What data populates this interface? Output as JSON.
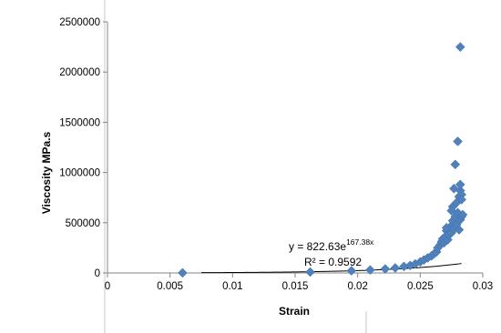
{
  "chart_data": {
    "type": "scatter",
    "xlabel": "Strain",
    "ylabel": "Viscosity MPa.s",
    "xlim": [
      0,
      0.03
    ],
    "ylim": [
      0,
      2500000
    ],
    "x_ticks": [
      0,
      0.005,
      0.01,
      0.015,
      0.02,
      0.025,
      0.03
    ],
    "x_tick_labels": [
      "0",
      "0.005",
      "0.01",
      "0.015",
      "0.02",
      "0.025",
      "0.03"
    ],
    "y_ticks": [
      0,
      500000,
      1000000,
      1500000,
      2000000,
      2500000
    ],
    "y_tick_labels": [
      "0",
      "500000",
      "1000000",
      "1500000",
      "2000000",
      "2500000"
    ],
    "grid": false,
    "marker_color": "#4F81BD",
    "trendline": {
      "type": "exponential",
      "a": 822.63,
      "b": 167.38,
      "x_range": [
        0.0075,
        0.0283
      ],
      "color": "#000000"
    },
    "annotations": {
      "equation_prefix": "y = 822.63e",
      "equation_exponent": "167.38x",
      "r_squared": "R² = 0.9592"
    },
    "points": [
      [
        0.006,
        1000
      ],
      [
        0.0162,
        9000
      ],
      [
        0.0195,
        22000
      ],
      [
        0.021,
        30000
      ],
      [
        0.0222,
        40000
      ],
      [
        0.023,
        50000
      ],
      [
        0.0237,
        65000
      ],
      [
        0.0242,
        75000
      ],
      [
        0.0246,
        90000
      ],
      [
        0.025,
        110000
      ],
      [
        0.0253,
        130000
      ],
      [
        0.0256,
        150000
      ],
      [
        0.0259,
        170000
      ],
      [
        0.0261,
        190000
      ],
      [
        0.0263,
        210000
      ],
      [
        0.0264,
        250000
      ],
      [
        0.0266,
        280000
      ],
      [
        0.0267,
        310000
      ],
      [
        0.0268,
        340000
      ],
      [
        0.0269,
        300000
      ],
      [
        0.027,
        360000
      ],
      [
        0.0271,
        420000
      ],
      [
        0.0272,
        330000
      ],
      [
        0.0273,
        380000
      ],
      [
        0.0274,
        460000
      ],
      [
        0.0275,
        400000
      ],
      [
        0.0276,
        520000
      ],
      [
        0.0276,
        660000
      ],
      [
        0.0277,
        840000
      ],
      [
        0.0277,
        440000
      ],
      [
        0.0278,
        1080000
      ],
      [
        0.0278,
        560000
      ],
      [
        0.0279,
        480000
      ],
      [
        0.028,
        1310000
      ],
      [
        0.028,
        600000
      ],
      [
        0.0281,
        760000
      ],
      [
        0.0281,
        430000
      ],
      [
        0.0282,
        820000
      ],
      [
        0.0282,
        530000
      ],
      [
        0.0282,
        880000
      ],
      [
        0.0283,
        780000
      ],
      [
        0.0283,
        560000
      ],
      [
        0.0284,
        580000
      ],
      [
        0.0282,
        2250000
      ],
      [
        0.0279,
        700000
      ],
      [
        0.0283,
        730000
      ],
      [
        0.0275,
        620000
      ],
      [
        0.0271,
        450000
      ]
    ]
  }
}
